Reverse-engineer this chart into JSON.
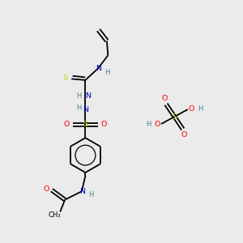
{
  "bg_color": "#ebebeb",
  "atom_colors": {
    "C": "#000000",
    "N": "#0000cc",
    "O": "#ff0000",
    "S": "#cccc00",
    "H": "#408080"
  },
  "bond_color": "#000000"
}
